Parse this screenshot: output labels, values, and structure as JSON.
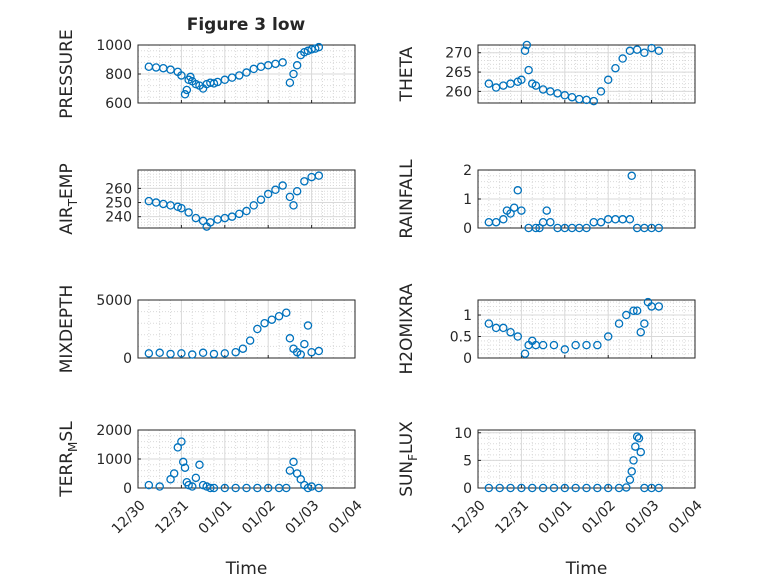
{
  "figure": {
    "title": "Figure 3 low",
    "background": "#ffffff",
    "axes_color": "#262626",
    "marker_color": "#0072BD",
    "grid_color": "#d9d9d9"
  },
  "chart_data": [
    {
      "type": "scatter",
      "ylabel_main": "PRESSURE",
      "ylabel_sub": "",
      "ylabel_rest": "",
      "ylim": [
        600,
        1000
      ],
      "yticks": [
        600,
        800,
        1000
      ],
      "yticklabels": [
        "600",
        "800",
        "1000"
      ],
      "xlim": [
        "12/30",
        "01/04"
      ],
      "xlabel": "",
      "show_xticklabels": false,
      "x": [
        "12/30 06:00",
        "12/30 10:00",
        "12/30 14:00",
        "12/30 18:00",
        "12/30 22:00",
        "12/31 00:00",
        "12/31 02:00",
        "12/31 03:00",
        "12/31 04:00",
        "12/31 05:00",
        "12/31 06:00",
        "12/31 08:00",
        "12/31 10:00",
        "12/31 12:00",
        "12/31 14:00",
        "12/31 16:00",
        "12/31 18:00",
        "12/31 20:00",
        "01/01 00:00",
        "01/01 04:00",
        "01/01 08:00",
        "01/01 12:00",
        "01/01 16:00",
        "01/01 20:00",
        "01/02 00:00",
        "01/02 04:00",
        "01/02 08:00",
        "01/02 12:00",
        "01/02 14:00",
        "01/02 16:00",
        "01/02 18:00",
        "01/02 20:00",
        "01/02 22:00",
        "01/03 00:00",
        "01/03 02:00",
        "01/03 04:00"
      ],
      "y": [
        850,
        845,
        840,
        830,
        815,
        790,
        660,
        690,
        760,
        780,
        750,
        730,
        720,
        700,
        730,
        740,
        735,
        745,
        760,
        775,
        790,
        810,
        835,
        850,
        860,
        870,
        880,
        740,
        800,
        860,
        930,
        950,
        960,
        970,
        975,
        985
      ]
    },
    {
      "type": "scatter",
      "ylabel_main": "THETA",
      "ylabel_sub": "",
      "ylabel_rest": "",
      "ylim": [
        257,
        272
      ],
      "yticks": [
        260,
        265,
        270
      ],
      "yticklabels": [
        "260",
        "265",
        "270"
      ],
      "xlim": [
        "12/30",
        "01/04"
      ],
      "xlabel": "",
      "show_xticklabels": false,
      "x": [
        "12/30 06:00",
        "12/30 10:00",
        "12/30 14:00",
        "12/30 18:00",
        "12/30 22:00",
        "12/31 00:00",
        "12/31 02:00",
        "12/31 03:00",
        "12/31 04:00",
        "12/31 06:00",
        "12/31 08:00",
        "12/31 12:00",
        "12/31 16:00",
        "12/31 20:00",
        "01/01 00:00",
        "01/01 04:00",
        "01/01 08:00",
        "01/01 12:00",
        "01/01 16:00",
        "01/01 20:00",
        "01/02 00:00",
        "01/02 04:00",
        "01/02 08:00",
        "01/02 12:00",
        "01/02 16:00",
        "01/02 20:00",
        "01/03 00:00",
        "01/03 04:00"
      ],
      "y": [
        262,
        261,
        261.5,
        262,
        262.5,
        263,
        270.5,
        272,
        265.5,
        262,
        261.5,
        260.5,
        260,
        259.5,
        259,
        258.5,
        258,
        257.8,
        257.5,
        260,
        263,
        266,
        268.5,
        270.5,
        270.8,
        270,
        271.2,
        270.5
      ]
    },
    {
      "type": "scatter",
      "ylabel_main": "AIR",
      "ylabel_sub": "T",
      "ylabel_rest": "EMP",
      "ylim": [
        232,
        273
      ],
      "yticks": [
        240,
        250,
        260
      ],
      "yticklabels": [
        "240",
        "250",
        "260"
      ],
      "xlim": [
        "12/30",
        "01/04"
      ],
      "xlabel": "",
      "show_xticklabels": false,
      "x": [
        "12/30 06:00",
        "12/30 10:00",
        "12/30 14:00",
        "12/30 18:00",
        "12/30 22:00",
        "12/31 00:00",
        "12/31 04:00",
        "12/31 08:00",
        "12/31 12:00",
        "12/31 14:00",
        "12/31 16:00",
        "12/31 20:00",
        "01/01 00:00",
        "01/01 04:00",
        "01/01 08:00",
        "01/01 12:00",
        "01/01 16:00",
        "01/01 20:00",
        "01/02 00:00",
        "01/02 04:00",
        "01/02 08:00",
        "01/02 12:00",
        "01/02 14:00",
        "01/02 16:00",
        "01/02 20:00",
        "01/03 00:00",
        "01/03 04:00"
      ],
      "y": [
        251,
        250,
        249,
        248,
        247,
        246,
        243,
        239,
        237,
        233,
        236,
        238,
        239,
        240,
        242,
        244,
        248,
        252,
        256,
        259,
        262,
        254,
        248,
        258,
        265,
        268,
        269
      ]
    },
    {
      "type": "scatter",
      "ylabel_main": "RAINFALL",
      "ylabel_sub": "",
      "ylabel_rest": "",
      "ylim": [
        0,
        2
      ],
      "yticks": [
        0,
        1,
        2
      ],
      "yticklabels": [
        "0",
        "1",
        "2"
      ],
      "xlim": [
        "12/30",
        "01/04"
      ],
      "xlabel": "",
      "show_xticklabels": false,
      "x": [
        "12/30 06:00",
        "12/30 10:00",
        "12/30 14:00",
        "12/30 16:00",
        "12/30 18:00",
        "12/30 20:00",
        "12/30 22:00",
        "12/31 00:00",
        "12/31 04:00",
        "12/31 08:00",
        "12/31 10:00",
        "12/31 12:00",
        "12/31 14:00",
        "12/31 16:00",
        "12/31 20:00",
        "01/01 00:00",
        "01/01 04:00",
        "01/01 08:00",
        "01/01 12:00",
        "01/01 16:00",
        "01/01 20:00",
        "01/02 00:00",
        "01/02 04:00",
        "01/02 08:00",
        "01/02 12:00",
        "01/02 13:00",
        "01/02 16:00",
        "01/02 20:00",
        "01/03 00:00",
        "01/03 04:00"
      ],
      "y": [
        0.2,
        0.2,
        0.3,
        0.6,
        0.5,
        0.7,
        1.3,
        0.6,
        0,
        0,
        0,
        0.2,
        0.6,
        0.2,
        0,
        0,
        0,
        0,
        0,
        0.2,
        0.2,
        0.3,
        0.3,
        0.3,
        0.3,
        1.8,
        0,
        0,
        0,
        0
      ]
    },
    {
      "type": "scatter",
      "ylabel_main": "MIXDEPTH",
      "ylabel_sub": "",
      "ylabel_rest": "",
      "ylim": [
        0,
        5000
      ],
      "yticks": [
        0,
        5000
      ],
      "yticklabels": [
        "0",
        "5000"
      ],
      "xlim": [
        "12/30",
        "01/04"
      ],
      "xlabel": "",
      "show_xticklabels": false,
      "x": [
        "12/30 06:00",
        "12/30 12:00",
        "12/30 18:00",
        "12/31 00:00",
        "12/31 06:00",
        "12/31 12:00",
        "12/31 18:00",
        "01/01 00:00",
        "01/01 06:00",
        "01/01 10:00",
        "01/01 14:00",
        "01/01 18:00",
        "01/01 22:00",
        "01/02 02:00",
        "01/02 06:00",
        "01/02 10:00",
        "01/02 12:00",
        "01/02 14:00",
        "01/02 16:00",
        "01/02 18:00",
        "01/02 20:00",
        "01/02 22:00",
        "01/03 00:00",
        "01/03 04:00"
      ],
      "y": [
        400,
        450,
        350,
        400,
        300,
        450,
        350,
        400,
        500,
        800,
        1500,
        2500,
        3000,
        3300,
        3600,
        3900,
        1700,
        800,
        500,
        300,
        1200,
        2800,
        500,
        600
      ]
    },
    {
      "type": "scatter",
      "ylabel_main": "H2OMIXRA",
      "ylabel_sub": "",
      "ylabel_rest": "",
      "ylim": [
        0,
        1.35
      ],
      "yticks": [
        0,
        0.5,
        1
      ],
      "yticklabels": [
        "0",
        "0.5",
        "1"
      ],
      "xlim": [
        "12/30",
        "01/04"
      ],
      "xlabel": "",
      "show_xticklabels": false,
      "x": [
        "12/30 06:00",
        "12/30 10:00",
        "12/30 14:00",
        "12/30 18:00",
        "12/30 22:00",
        "12/31 02:00",
        "12/31 04:00",
        "12/31 06:00",
        "12/31 08:00",
        "12/31 12:00",
        "12/31 18:00",
        "01/01 00:00",
        "01/01 06:00",
        "01/01 12:00",
        "01/01 18:00",
        "01/02 00:00",
        "01/02 06:00",
        "01/02 10:00",
        "01/02 14:00",
        "01/02 16:00",
        "01/02 18:00",
        "01/02 20:00",
        "01/02 22:00",
        "01/03 00:00",
        "01/03 04:00"
      ],
      "y": [
        0.8,
        0.7,
        0.7,
        0.6,
        0.5,
        0.1,
        0.3,
        0.4,
        0.3,
        0.3,
        0.3,
        0.2,
        0.3,
        0.3,
        0.3,
        0.5,
        0.8,
        1.0,
        1.1,
        1.1,
        0.6,
        0.8,
        1.3,
        1.2,
        1.2
      ]
    },
    {
      "type": "scatter",
      "ylabel_main": "TERR",
      "ylabel_sub": "M",
      "ylabel_rest": "SL",
      "ylim": [
        0,
        2000
      ],
      "yticks": [
        0,
        1000,
        2000
      ],
      "yticklabels": [
        "0",
        "1000",
        "2000"
      ],
      "xlim": [
        "12/30",
        "01/04"
      ],
      "xlabel": "Time",
      "show_xticklabels": true,
      "xticks": [
        "12/30",
        "12/31",
        "01/01",
        "01/02",
        "01/03",
        "01/04"
      ],
      "x": [
        "12/30 06:00",
        "12/30 12:00",
        "12/30 18:00",
        "12/30 20:00",
        "12/30 22:00",
        "12/31 00:00",
        "12/31 01:00",
        "12/31 02:00",
        "12/31 03:00",
        "12/31 04:00",
        "12/31 06:00",
        "12/31 08:00",
        "12/31 10:00",
        "12/31 12:00",
        "12/31 14:00",
        "12/31 16:00",
        "12/31 18:00",
        "01/01 00:00",
        "01/01 06:00",
        "01/01 12:00",
        "01/01 18:00",
        "01/02 00:00",
        "01/02 06:00",
        "01/02 10:00",
        "01/02 12:00",
        "01/02 14:00",
        "01/02 16:00",
        "01/02 18:00",
        "01/02 20:00",
        "01/02 22:00",
        "01/03 00:00",
        "01/03 04:00"
      ],
      "y": [
        100,
        50,
        300,
        500,
        1400,
        1600,
        900,
        700,
        200,
        100,
        50,
        350,
        800,
        100,
        50,
        0,
        0,
        0,
        0,
        0,
        0,
        0,
        0,
        0,
        600,
        900,
        500,
        300,
        100,
        0,
        50,
        0
      ]
    },
    {
      "type": "scatter",
      "ylabel_main": "SUN",
      "ylabel_sub": "F",
      "ylabel_rest": "LUX",
      "ylim": [
        0,
        10.5
      ],
      "yticks": [
        0,
        5,
        10
      ],
      "yticklabels": [
        "0",
        "5",
        "10"
      ],
      "xlim": [
        "12/30",
        "01/04"
      ],
      "xlabel": "Time",
      "show_xticklabels": true,
      "xticks": [
        "12/30",
        "12/31",
        "01/01",
        "01/02",
        "01/03",
        "01/04"
      ],
      "x": [
        "12/30 06:00",
        "12/30 12:00",
        "12/30 18:00",
        "12/31 00:00",
        "12/31 06:00",
        "12/31 12:00",
        "12/31 18:00",
        "01/01 00:00",
        "01/01 06:00",
        "01/01 12:00",
        "01/01 18:00",
        "01/02 00:00",
        "01/02 06:00",
        "01/02 10:00",
        "01/02 12:00",
        "01/02 13:00",
        "01/02 14:00",
        "01/02 15:00",
        "01/02 16:00",
        "01/02 17:00",
        "01/02 18:00",
        "01/02 20:00",
        "01/03 00:00",
        "01/03 04:00"
      ],
      "y": [
        0,
        0,
        0,
        0,
        0,
        0,
        0,
        0,
        0,
        0,
        0,
        0,
        0,
        0.1,
        1.5,
        3,
        5,
        7.5,
        9.3,
        9.0,
        6.5,
        0,
        0,
        0
      ]
    }
  ]
}
